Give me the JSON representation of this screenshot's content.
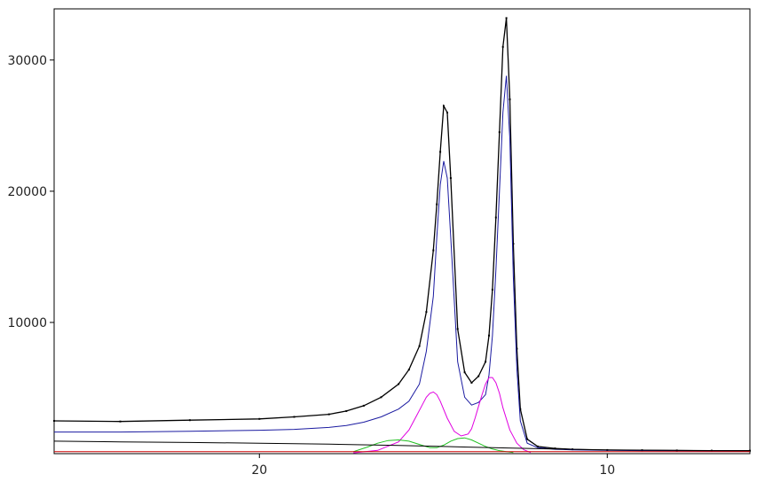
{
  "chart_data": {
    "type": "line",
    "title": "",
    "xlabel": "",
    "ylabel": "",
    "x_reversed": true,
    "xlim": [
      25.9,
      5.9
    ],
    "ylim": [
      0,
      33900
    ],
    "x_ticks": [
      20,
      10
    ],
    "x_tick_labels": [
      "20",
      "10"
    ],
    "y_ticks": [
      10000,
      20000,
      30000
    ],
    "y_tick_labels": [
      "10000",
      "20000",
      "30000"
    ],
    "grid": false,
    "legend": "none",
    "series": [
      {
        "color": "#000000",
        "style": "points",
        "x": [
          25.9,
          24.0,
          22.0,
          20.0,
          19.0,
          18.0,
          17.5,
          17.0,
          16.5,
          16.0,
          15.7,
          15.4,
          15.2,
          15.0,
          14.9,
          14.8,
          14.7,
          14.6,
          14.5,
          14.3,
          14.1,
          13.9,
          13.7,
          13.5,
          13.4,
          13.3,
          13.2,
          13.1,
          13.0,
          12.9,
          12.8,
          12.7,
          12.6,
          12.5,
          12.3,
          12.0,
          11.5,
          11.0,
          10.0,
          9.0,
          8.0,
          7.0,
          5.9
        ],
        "y": [
          2500,
          2450,
          2550,
          2650,
          2800,
          3000,
          3250,
          3650,
          4300,
          5300,
          6400,
          8200,
          10800,
          15500,
          19000,
          23000,
          26500,
          26000,
          21000,
          9500,
          6200,
          5400,
          5900,
          7000,
          9000,
          12500,
          18000,
          24500,
          31000,
          33200,
          27000,
          16000,
          8000,
          3400,
          1100,
          550,
          400,
          330,
          280,
          260,
          240,
          230,
          220
        ]
      },
      {
        "color": "#1a1aa0",
        "style": "line",
        "x": [
          25.9,
          24.0,
          22.0,
          20.0,
          19.0,
          18.0,
          17.5,
          17.0,
          16.5,
          16.0,
          15.7,
          15.4,
          15.2,
          15.0,
          14.9,
          14.8,
          14.7,
          14.6,
          14.5,
          14.3,
          14.1,
          13.9,
          13.7,
          13.5,
          13.4,
          13.3,
          13.2,
          13.1,
          13.0,
          12.9,
          12.8,
          12.7,
          12.6,
          12.5,
          12.3,
          12.0,
          11.5,
          11.0,
          10.0,
          9.0,
          8.0,
          7.0,
          5.9
        ],
        "y": [
          1650,
          1650,
          1700,
          1780,
          1850,
          2000,
          2150,
          2400,
          2800,
          3400,
          4000,
          5300,
          7800,
          12000,
          16500,
          20500,
          22300,
          21000,
          16500,
          7000,
          4300,
          3700,
          3900,
          4500,
          6000,
          9000,
          14000,
          20000,
          26000,
          28800,
          24000,
          13500,
          6500,
          2500,
          800,
          450,
          330,
          290,
          250,
          230,
          220,
          210,
          200
        ]
      },
      {
        "color": "#e000e0",
        "style": "line",
        "x": [
          17.3,
          16.6,
          16.0,
          15.7,
          15.5,
          15.3,
          15.2,
          15.1,
          15.0,
          14.9,
          14.8,
          14.6,
          14.4,
          14.2,
          14.0,
          13.9,
          13.8,
          13.7,
          13.6,
          13.5,
          13.4,
          13.3,
          13.2,
          13.1,
          13.0,
          12.8,
          12.6,
          12.4,
          12.2
        ],
        "y": [
          60,
          250,
          900,
          1800,
          2800,
          3800,
          4300,
          4600,
          4700,
          4500,
          4000,
          2700,
          1700,
          1350,
          1500,
          1900,
          2700,
          3600,
          4500,
          5300,
          5800,
          5800,
          5400,
          4600,
          3500,
          1800,
          800,
          300,
          80
        ]
      },
      {
        "color": "#20c020",
        "style": "line",
        "x": [
          17.3,
          16.9,
          16.6,
          16.3,
          16.0,
          15.7,
          15.4,
          15.1,
          14.9,
          14.7,
          14.5,
          14.3,
          14.1,
          13.9,
          13.7,
          13.5,
          13.3,
          13.1,
          12.9,
          12.7
        ],
        "y": [
          150,
          500,
          800,
          1000,
          1050,
          950,
          700,
          450,
          450,
          650,
          950,
          1150,
          1200,
          1050,
          800,
          550,
          350,
          230,
          150,
          80
        ]
      },
      {
        "color": "#000000",
        "style": "line",
        "x": [
          25.9,
          24.0,
          22.0,
          20.0,
          18.0,
          16.0,
          14.0,
          12.0,
          10.0,
          8.0,
          5.9
        ],
        "y": [
          950,
          900,
          850,
          800,
          720,
          620,
          500,
          380,
          280,
          240,
          210
        ]
      },
      {
        "color": "#cc0000",
        "style": "line",
        "x": [
          25.9,
          20.0,
          14.0,
          10.0,
          5.9
        ],
        "y": [
          150,
          150,
          150,
          150,
          150
        ]
      }
    ]
  }
}
